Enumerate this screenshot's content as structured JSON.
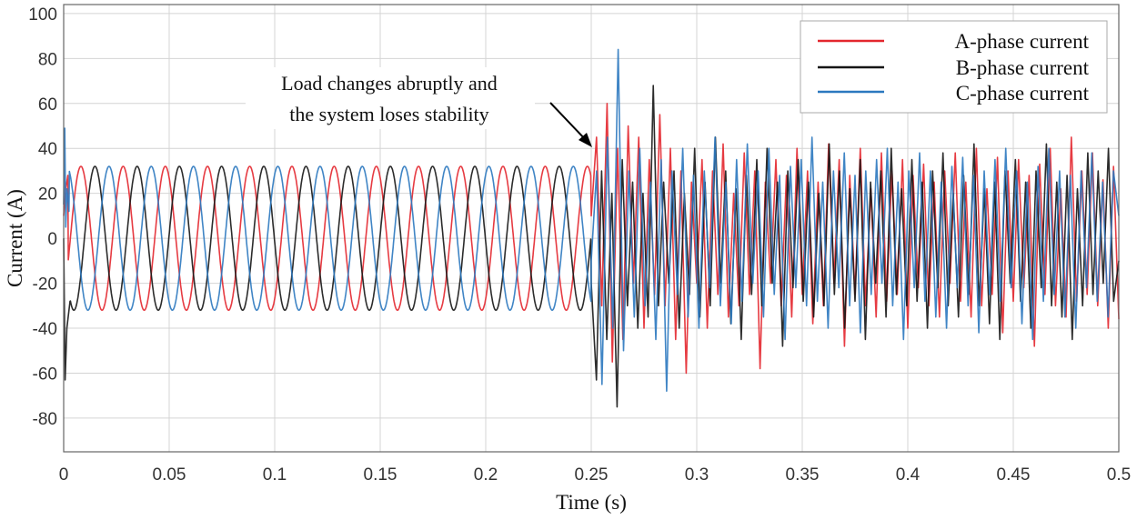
{
  "chart_data": {
    "type": "line",
    "title": "",
    "xlabel": "Time (s)",
    "ylabel": "Current (A)",
    "xlim": [
      0,
      0.5
    ],
    "ylim": [
      -95,
      104
    ],
    "xticks": [
      0,
      0.05,
      0.1,
      0.15,
      0.2,
      0.25,
      0.3,
      0.35,
      0.4,
      0.45,
      0.5
    ],
    "xtick_labels": [
      "0",
      "0.05",
      "0.1",
      "0.15",
      "0.2",
      "0.25",
      "0.3",
      "0.35",
      "0.4",
      "0.45",
      "0.5"
    ],
    "yticks": [
      100,
      80,
      60,
      40,
      20,
      0,
      -20,
      -40,
      -60,
      -80
    ],
    "ytick_labels": [
      "100",
      "80",
      "60",
      "40",
      "20",
      "0",
      "-20",
      "-40",
      "-60",
      "-80"
    ],
    "grid": true,
    "legend_position": "top-right",
    "annotation": {
      "lines": [
        "Load changes abruptly and",
        "the system loses stability"
      ],
      "points_to": [
        0.252,
        40
      ]
    },
    "steady_state": {
      "t_range": [
        0,
        0.25
      ],
      "amplitude": 32,
      "frequency_hz": 50
    },
    "series": [
      {
        "name": "A-phase current",
        "color": "#e3262e",
        "phase_deg": -57,
        "initial_transient": [
          [
            0,
            10
          ],
          [
            0.001,
            22
          ],
          [
            0.002,
            28
          ]
        ],
        "disturbed": {
          "t_range": [
            0.25,
            0.5
          ],
          "values": [
            10,
            45,
            -30,
            60,
            -55,
            40,
            -45,
            50,
            -20,
            45,
            -40,
            35,
            -25,
            55,
            -30,
            40,
            -45,
            30,
            -60,
            25,
            -20,
            35,
            -40,
            30,
            -25,
            42,
            -35,
            20,
            -30,
            38,
            -25,
            30,
            -58,
            25,
            -20,
            35,
            -30,
            28,
            -35,
            40,
            -25,
            30,
            -38,
            25,
            -30,
            42,
            -20,
            35,
            -48,
            28,
            -25,
            40,
            -30,
            22,
            -35,
            38,
            -28,
            30,
            -25,
            35,
            -40,
            28,
            -22,
            33,
            -30,
            25,
            -35,
            30,
            -20,
            38,
            -28,
            25,
            -35,
            40,
            -30,
            22,
            -25,
            36,
            -42,
            30,
            -28,
            35,
            -22,
            28,
            -48,
            33,
            -25,
            40,
            -30,
            22,
            -35,
            45,
            -28,
            30,
            -25,
            38,
            -30,
            26,
            -40,
            32,
            -36
          ]
        }
      },
      {
        "name": "B-phase current",
        "color": "#151515",
        "phase_deg": -177,
        "initial_transient": [
          [
            0,
            0
          ],
          [
            0.0007,
            -63
          ],
          [
            0.0015,
            -40
          ],
          [
            0.003,
            -28
          ]
        ],
        "disturbed": {
          "t_range": [
            0.25,
            0.5
          ],
          "values": [
            -20,
            -63,
            30,
            -45,
            20,
            -75,
            35,
            -30,
            25,
            -40,
            20,
            -35,
            68,
            -30,
            25,
            -20,
            30,
            -40,
            20,
            -25,
            40,
            -35,
            25,
            -30,
            45,
            -20,
            30,
            -38,
            22,
            -45,
            28,
            -25,
            35,
            -30,
            40,
            -20,
            25,
            -48,
            30,
            -22,
            35,
            -28,
            25,
            -35,
            20,
            -30,
            42,
            -25,
            30,
            -40,
            22,
            -28,
            35,
            -45,
            25,
            -20,
            30,
            -35,
            40,
            -25,
            22,
            -30,
            35,
            -28,
            25,
            -40,
            30,
            -22,
            38,
            -30,
            20,
            -35,
            28,
            -25,
            42,
            -30,
            22,
            -38,
            25,
            -45,
            30,
            -20,
            35,
            -28,
            25,
            -40,
            30,
            -22,
            42,
            -30,
            25,
            -35,
            28,
            -45,
            22,
            -30,
            38,
            -25,
            30,
            -20,
            40,
            -28,
            -10
          ]
        }
      },
      {
        "name": "C-phase current",
        "color": "#2b78bf",
        "phase_deg": 63,
        "initial_transient": [
          [
            0,
            15
          ],
          [
            0.0005,
            49
          ],
          [
            0.001,
            5
          ],
          [
            0.0016,
            22
          ],
          [
            0.0025,
            12
          ]
        ],
        "disturbed": {
          "t_range": [
            0.25,
            0.5
          ],
          "values": [
            -10,
            30,
            -65,
            45,
            -40,
            84,
            -50,
            30,
            -35,
            40,
            -30,
            25,
            -45,
            35,
            -68,
            30,
            -25,
            40,
            -35,
            28,
            -40,
            30,
            -22,
            45,
            -30,
            25,
            -38,
            35,
            -28,
            42,
            -20,
            30,
            -35,
            40,
            -25,
            28,
            -45,
            32,
            -22,
            35,
            -30,
            45,
            -28,
            25,
            -40,
            30,
            -22,
            38,
            -30,
            28,
            -42,
            30,
            -25,
            35,
            -20,
            40,
            -30,
            25,
            -45,
            30,
            -22,
            38,
            -28,
            30,
            -35,
            25,
            -40,
            32,
            -22,
            36,
            -30,
            28,
            -42,
            30,
            -25,
            35,
            -28,
            40,
            -22,
            30,
            -38,
            25,
            -45,
            32,
            -28,
            40,
            -25,
            30,
            -35,
            28,
            -40,
            30,
            -22,
            38,
            -28,
            25,
            -35,
            30,
            10
          ]
        }
      }
    ]
  }
}
